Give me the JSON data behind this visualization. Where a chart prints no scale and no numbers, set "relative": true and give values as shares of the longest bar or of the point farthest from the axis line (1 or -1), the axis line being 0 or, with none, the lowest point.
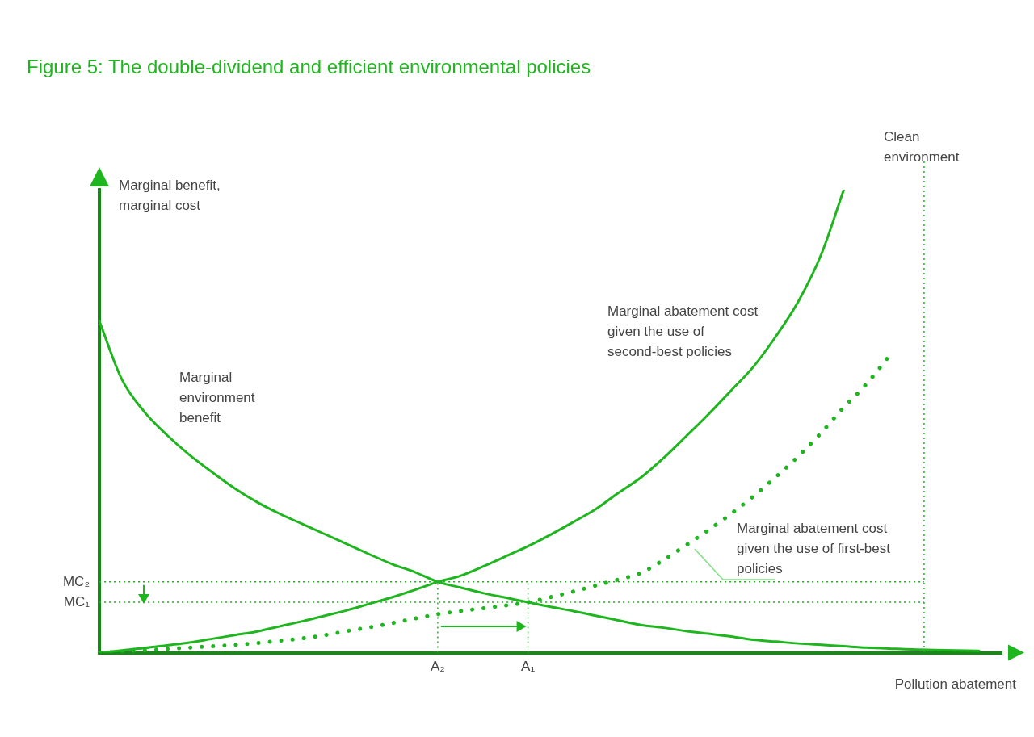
{
  "chart_data": {
    "type": "line",
    "relative": true,
    "title": "Figure 5: The double-dividend and efficient environmental policies",
    "ylabel": "Marginal benefit, marginal cost",
    "xlabel": "Pollution abatement",
    "tick_labels": "x",
    "grid": false,
    "legend": false,
    "marker": "none",
    "annotations": [
      "Clean environment"
    ],
    "categories": [
      null,
      null,
      null,
      null,
      null,
      null,
      null,
      null,
      null,
      null,
      null,
      null,
      null,
      null,
      null,
      "A₂",
      null,
      null,
      null,
      "A₁",
      null,
      null,
      null,
      null,
      null,
      null,
      null,
      null,
      null,
      null,
      null,
      null,
      null,
      null,
      null,
      null,
      null,
      null,
      null,
      null,
      null
    ],
    "series": [
      {
        "name": "Marginal environment benefit",
        "color": "#1fb51f",
        "line_style": "solid",
        "values": [
          0.716,
          0.59,
          0.52,
          0.47,
          0.427,
          0.39,
          0.355,
          0.325,
          0.3,
          0.278,
          0.256,
          0.234,
          0.212,
          0.191,
          0.174,
          0.153,
          0.141,
          0.129,
          0.119,
          0.109,
          0.099,
          0.09,
          0.08,
          0.07,
          0.06,
          0.054,
          0.047,
          0.041,
          0.035,
          0.028,
          0.024,
          0.02,
          0.017,
          0.014,
          0.011,
          0.009,
          0.007,
          0.006,
          0.005,
          0.004,
          null
        ]
      },
      {
        "name": "Marginal abatement cost given the use of second-best policies",
        "color": "#1fb51f",
        "line_style": "solid",
        "values": [
          0,
          0.005,
          0.01,
          0.016,
          0.022,
          0.03,
          0.038,
          0.046,
          0.057,
          0.068,
          0.08,
          0.092,
          0.106,
          0.12,
          0.136,
          0.153,
          0.166,
          0.186,
          0.208,
          0.23,
          0.255,
          0.282,
          0.31,
          0.345,
          0.378,
          0.42,
          0.467,
          0.515,
          0.566,
          0.618,
          0.684,
          0.76,
          0.86,
          1,
          null,
          null,
          null,
          null,
          null,
          null,
          null
        ]
      },
      {
        "name": "Marginal abatement cost given the use of first-best policies",
        "color": "#1fb51f",
        "line_style": "dotted",
        "values": [
          0,
          0.002,
          0.005,
          0.008,
          0.011,
          0.014,
          0.017,
          0.021,
          0.026,
          0.031,
          0.038,
          0.047,
          0.055,
          0.064,
          0.074,
          0.083,
          0.09,
          0.096,
          0.102,
          0.109,
          0.12,
          0.132,
          0.145,
          0.158,
          0.172,
          0.2,
          0.232,
          0.265,
          0.3,
          0.338,
          0.38,
          0.425,
          0.475,
          0.53,
          0.58,
          0.64,
          null,
          null,
          null,
          null,
          null
        ]
      }
    ],
    "ref_lines": [
      {
        "axis": "y",
        "value": 0.153,
        "label": "MC₂",
        "line_style": "dotted",
        "color": "#1fb51f"
      },
      {
        "axis": "y",
        "value": 0.109,
        "label": "MC₁",
        "line_style": "dotted",
        "color": "#1fb51f"
      },
      {
        "axis": "x",
        "value": "A₂",
        "line_style": "dotted",
        "color": "#1fb51f"
      },
      {
        "axis": "x",
        "value": "A₁",
        "line_style": "dotted",
        "color": "#1fb51f"
      }
    ]
  }
}
